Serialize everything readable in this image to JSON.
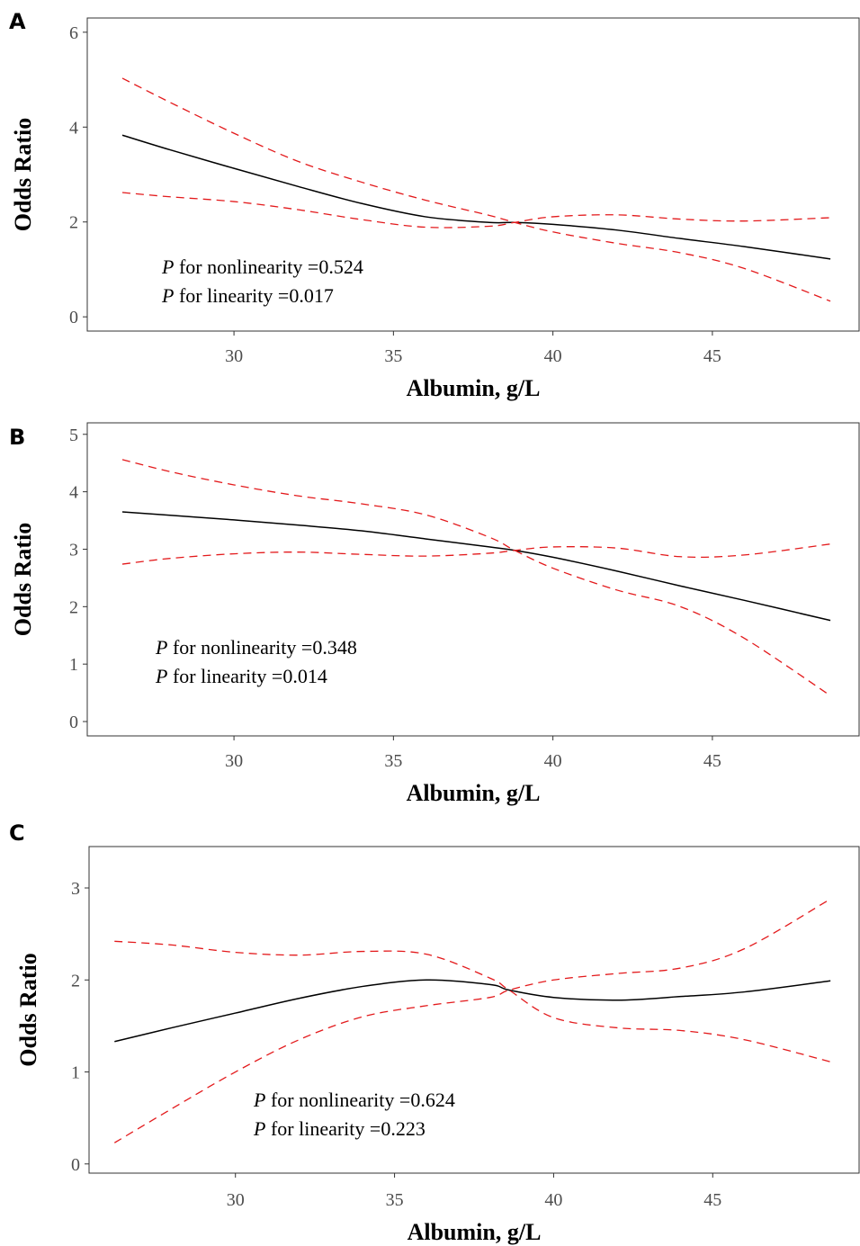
{
  "colors": {
    "estimate": "#000000",
    "ci": "#e31a1c",
    "frame": "#333333",
    "tick": "#4d4d4d"
  },
  "chart_data": [
    {
      "panel": "A",
      "type": "line",
      "xlabel": "Albumin, g/L",
      "ylabel": "Odds Ratio",
      "xlim": [
        25.4,
        49.6
      ],
      "ylim": [
        -0.3,
        6.3
      ],
      "xticks": [
        30,
        35,
        40,
        45
      ],
      "yticks": [
        0,
        2,
        4,
        6
      ],
      "grid": false,
      "annotation": [
        {
          "italic": "P",
          "text": " for nonlinearity =0.524"
        },
        {
          "italic": "P",
          "text": " for linearity =0.017"
        }
      ],
      "x": [
        26.5,
        28,
        30,
        32,
        34,
        36,
        38,
        38.8,
        40,
        42,
        44,
        46,
        48.7
      ],
      "series": [
        {
          "name": "",
          "style": "solid",
          "values": [
            3.83,
            3.52,
            3.13,
            2.75,
            2.39,
            2.11,
            1.99,
            1.99,
            1.95,
            1.83,
            1.65,
            1.48,
            1.22
          ]
        },
        {
          "name": "",
          "style": "dashed",
          "values": [
            5.03,
            4.52,
            3.87,
            3.28,
            2.84,
            2.46,
            2.14,
            1.99,
            1.79,
            1.55,
            1.35,
            1.02,
            0.33
          ]
        },
        {
          "name": "",
          "style": "dashed",
          "values": [
            2.62,
            2.53,
            2.43,
            2.26,
            2.05,
            1.89,
            1.91,
            1.99,
            2.11,
            2.15,
            2.06,
            2.02,
            2.09
          ]
        }
      ]
    },
    {
      "panel": "B",
      "type": "line",
      "xlabel": "Albumin, g/L",
      "ylabel": "Odds Ratio",
      "xlim": [
        25.4,
        49.6
      ],
      "ylim": [
        -0.25,
        5.2
      ],
      "xticks": [
        30,
        35,
        40,
        45
      ],
      "yticks": [
        0,
        1,
        2,
        3,
        4,
        5
      ],
      "grid": false,
      "annotation": [
        {
          "italic": "P",
          "text": " for nonlinearity =0.348"
        },
        {
          "italic": "P",
          "text": " for linearity =0.014"
        }
      ],
      "x": [
        26.5,
        28,
        30,
        32,
        34,
        36,
        38,
        38.8,
        40,
        42,
        44,
        46,
        48.7
      ],
      "series": [
        {
          "name": "",
          "style": "solid",
          "values": [
            3.65,
            3.59,
            3.51,
            3.42,
            3.32,
            3.18,
            3.04,
            2.98,
            2.86,
            2.62,
            2.36,
            2.11,
            1.76
          ]
        },
        {
          "name": "",
          "style": "dashed",
          "values": [
            4.56,
            4.35,
            4.12,
            3.93,
            3.79,
            3.6,
            3.21,
            2.98,
            2.67,
            2.29,
            2.0,
            1.45,
            0.45
          ]
        },
        {
          "name": "",
          "style": "dashed",
          "values": [
            2.74,
            2.84,
            2.92,
            2.95,
            2.91,
            2.88,
            2.93,
            2.98,
            3.04,
            3.02,
            2.87,
            2.9,
            3.09
          ]
        }
      ]
    },
    {
      "panel": "C",
      "type": "line",
      "xlabel": "Albumin, g/L",
      "ylabel": "Odds Ratio",
      "xlim": [
        25.4,
        49.6
      ],
      "ylim": [
        -0.1,
        3.45
      ],
      "xticks": [
        30,
        35,
        40,
        45
      ],
      "yticks": [
        0,
        1,
        2,
        3
      ],
      "grid": false,
      "annotation": [
        {
          "italic": "P",
          "text": " for nonlinearity =0.624"
        },
        {
          "italic": "P",
          "text": " for linearity =0.223"
        }
      ],
      "x": [
        26.2,
        28,
        30,
        32,
        34,
        36,
        38,
        38.6,
        40,
        42,
        44,
        46,
        48.7
      ],
      "series": [
        {
          "name": "",
          "style": "solid",
          "values": [
            1.33,
            1.48,
            1.64,
            1.8,
            1.93,
            2.0,
            1.95,
            1.89,
            1.81,
            1.78,
            1.82,
            1.87,
            1.99
          ]
        },
        {
          "name": "",
          "style": "dashed",
          "values": [
            2.42,
            2.38,
            2.3,
            2.27,
            2.31,
            2.28,
            2.02,
            1.89,
            1.59,
            1.48,
            1.45,
            1.35,
            1.11
          ]
        },
        {
          "name": "",
          "style": "dashed",
          "values": [
            0.23,
            0.6,
            1.0,
            1.35,
            1.6,
            1.72,
            1.81,
            1.89,
            2.0,
            2.07,
            2.13,
            2.34,
            2.88
          ]
        }
      ]
    }
  ]
}
